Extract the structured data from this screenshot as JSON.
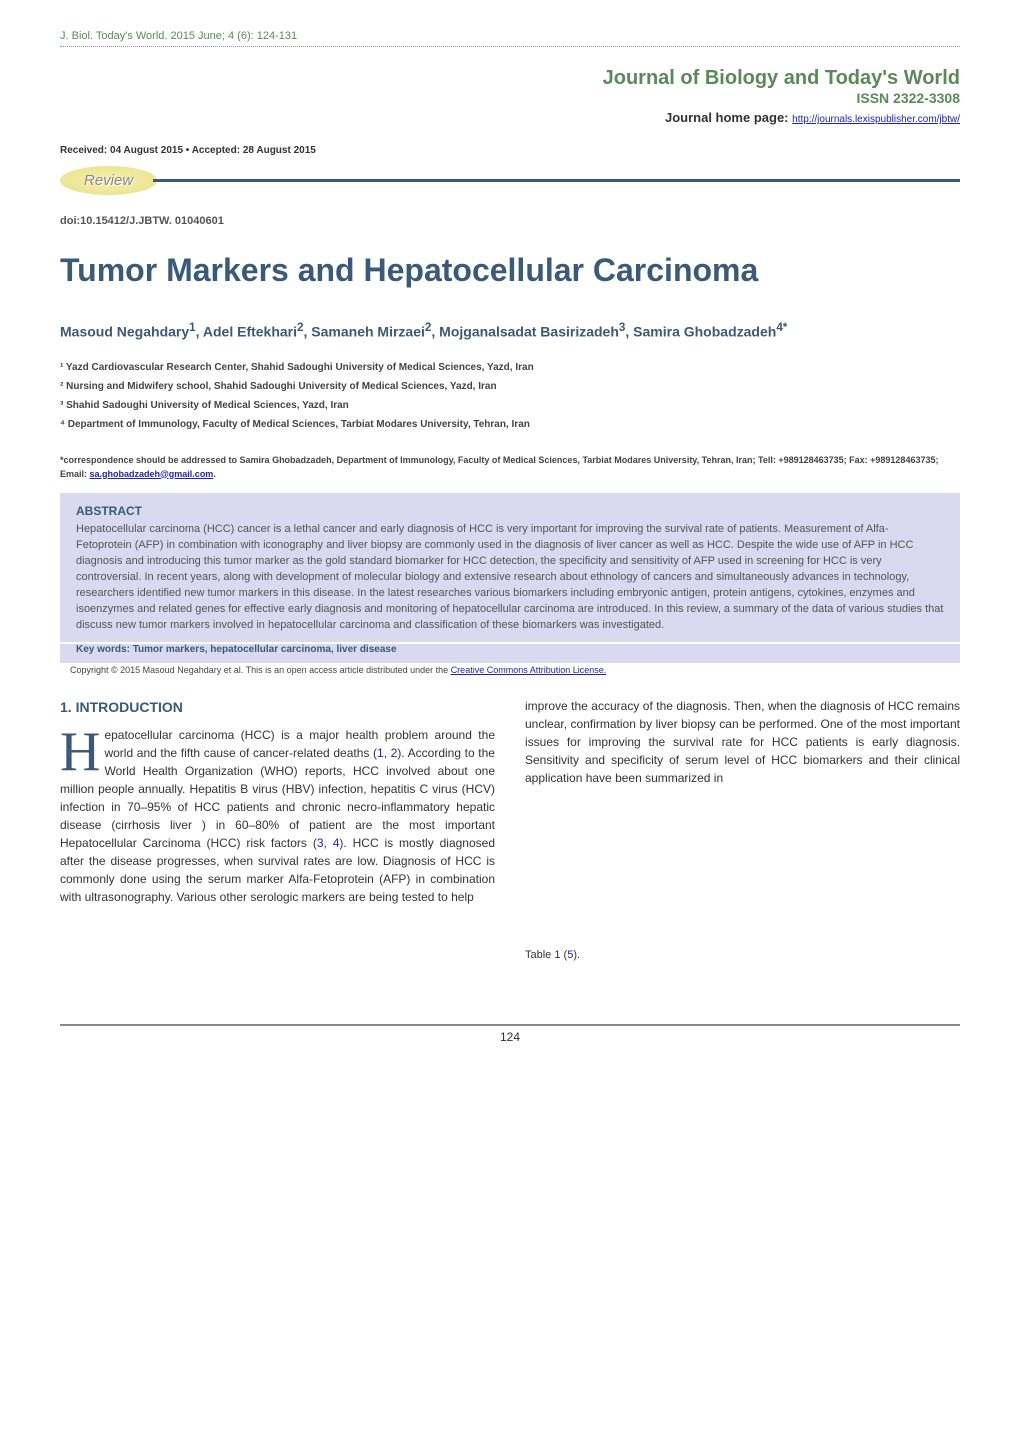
{
  "header": {
    "journal_citation": "J. Biol. Today's World. 2015 June; 4 (6): 124-131",
    "journal_title": "Journal of Biology and Today's World",
    "issn": "ISSN 2322-3308",
    "homepage_label": "Journal home page:",
    "homepage_url": "http://journals.lexispublisher.com/jbtw/",
    "received": "Received: 04 August 2015 • Accepted: 28 August 2015",
    "review_label": "Review",
    "doi": "doi:10.15412/J.JBTW. 01040601"
  },
  "article": {
    "title": "Tumor Markers and Hepatocellular Carcinoma",
    "authors_html": "Masoud Negahdary<sup>1</sup>, Adel Eftekhari<sup>2</sup>, Samaneh Mirzaei<sup>2</sup>, Mojganalsadat Basirizadeh<sup>3</sup>, Samira Ghobadzadeh<sup>4*</sup>",
    "affiliations": [
      "¹ Yazd Cardiovascular Research Center, Shahid Sadoughi University of Medical Sciences, Yazd, Iran",
      "² Nursing and Midwifery school, Shahid Sadoughi University of Medical Sciences, Yazd, Iran",
      "³ Shahid Sadoughi University of Medical Sciences, Yazd, Iran",
      "⁴ Department of Immunology, Faculty of Medical Sciences, Tarbiat Modares University, Tehran, Iran"
    ],
    "correspondence": "*correspondence should be addressed to Samira Ghobadzadeh, Department of Immunology, Faculty of Medical Sciences, Tarbiat Modares University, Tehran, Iran; Tell: +989128463735; Fax: +989128463735; Email: ",
    "correspondence_email": "sa.ghobadzadeh@gmail.com"
  },
  "abstract": {
    "label": "ABSTRACT",
    "text": "Hepatocellular carcinoma (HCC) cancer is a lethal cancer and early diagnosis of HCC is very important for improving the survival rate of patients. Measurement of Alfa-Fetoprotein (AFP) in combination with iconography and liver biopsy are commonly used in the diagnosis of liver cancer as well as HCC. Despite the wide use of AFP in HCC diagnosis and introducing this tumor marker as the gold standard biomarker for HCC detection, the specificity and sensitivity of AFP used in screening for HCC is very controversial. In recent years, along with development of molecular biology and extensive research about ethnology of cancers and simultaneously advances in technology, researchers identified new tumor markers in this disease. In the latest researches various biomarkers including embryonic antigen, protein antigens, cytokines, enzymes and isoenzymes and related genes for effective early diagnosis and monitoring of hepatocellular carcinoma are introduced. In this review, a summary of the data of various studies that discuss new tumor markers involved in hepatocellular carcinoma and classification of these biomarkers was investigated.",
    "keywords_label": "Key words:",
    "keywords": "Tumor markers, hepatocellular carcinoma, liver disease",
    "copyright": "Copyright © 2015 Masoud Negahdary et al. This is an open access article distributed under the ",
    "copyright_link": "Creative Commons Attribution License."
  },
  "intro": {
    "heading": "1. INTRODUCTION",
    "dropcap": "H",
    "col1_part1": "epatocellular carcinoma (HCC) is a major health problem around the world and the fifth cause of cancer-related deaths (",
    "ref1": "1",
    "ref2": "2",
    "col1_part2": "). According to the World Health Organization (WHO) reports, HCC involved about one million people annually. Hepatitis B virus (HBV) infection, hepatitis C virus (HCV) infection in 70–95% of HCC patients and chronic necro-inflammatory hepatic disease (cirrhosis liver ) in 60–80% of patient are the most important Hepatocellular Carcinoma (HCC) risk factors (",
    "ref3": "3",
    "ref4": "4",
    "col1_part3": "). HCC is mostly diagnosed after the disease progresses, when survival rates are low. Diagnosis of HCC is commonly done using the serum marker Alfa-Fetoprotein (AFP) in combination with ultrasonography. Various other serologic markers are being tested to help",
    "col2": "improve the accuracy of the diagnosis. Then, when the diagnosis of HCC remains unclear, confirmation by liver biopsy can be performed. One of the most important issues for improving the survival rate for HCC patients is early diagnosis. Sensitivity and specificity of serum level of HCC biomarkers and their clinical application have been summarized in",
    "table_ref_label": "Table 1",
    "table_ref_num": "5"
  },
  "page": {
    "number": "124"
  },
  "colors": {
    "green": "#5a8a5a",
    "navy": "#3a5a7a",
    "abstract_bg": "#d9d9f0",
    "link": "#2020cc"
  }
}
